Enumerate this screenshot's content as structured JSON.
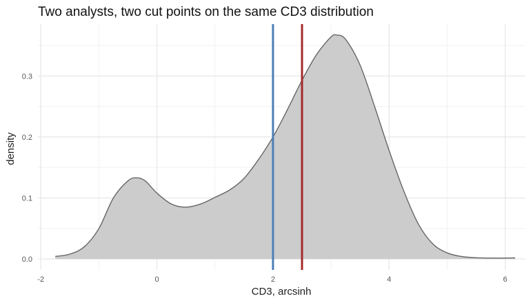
{
  "chart_data": {
    "type": "area",
    "title": "Two analysts, two cut points on the same CD3 distribution",
    "xlabel": "CD3, arcsinh",
    "ylabel": "density",
    "xlim": [
      -2.05,
      6.35
    ],
    "ylim": [
      -0.018,
      0.385
    ],
    "grid": true,
    "x_ticks": [
      -2,
      0,
      2,
      4,
      6
    ],
    "x_tick_labels": [
      "-2",
      "0",
      "2",
      "4",
      "6"
    ],
    "y_ticks": [
      0.0,
      0.1,
      0.2,
      0.3
    ],
    "y_tick_labels": [
      "0.0",
      "0.1",
      "0.2",
      "0.3"
    ],
    "series": [
      {
        "x": [
          -1.75,
          -1.5,
          -1.25,
          -1.0,
          -0.75,
          -0.5,
          -0.35,
          -0.2,
          0.0,
          0.25,
          0.5,
          0.75,
          1.0,
          1.25,
          1.5,
          1.75,
          2.0,
          2.25,
          2.5,
          2.75,
          3.0,
          3.1,
          3.25,
          3.5,
          3.75,
          4.0,
          4.25,
          4.5,
          4.75,
          5.0,
          5.25,
          5.5,
          5.75,
          6.0,
          6.17
        ],
        "y": [
          0.004,
          0.008,
          0.02,
          0.05,
          0.1,
          0.128,
          0.133,
          0.128,
          0.108,
          0.09,
          0.085,
          0.09,
          0.101,
          0.113,
          0.132,
          0.163,
          0.2,
          0.245,
          0.293,
          0.335,
          0.364,
          0.367,
          0.36,
          0.318,
          0.25,
          0.178,
          0.112,
          0.058,
          0.025,
          0.01,
          0.004,
          0.002,
          0.0015,
          0.0015,
          0.0018
        ],
        "fill": "#cccccc",
        "stroke": "#666666"
      }
    ],
    "vlines": [
      {
        "x": 2.0,
        "color": "#4d7fb8"
      },
      {
        "x": 2.5,
        "color": "#a52a2a"
      }
    ]
  }
}
